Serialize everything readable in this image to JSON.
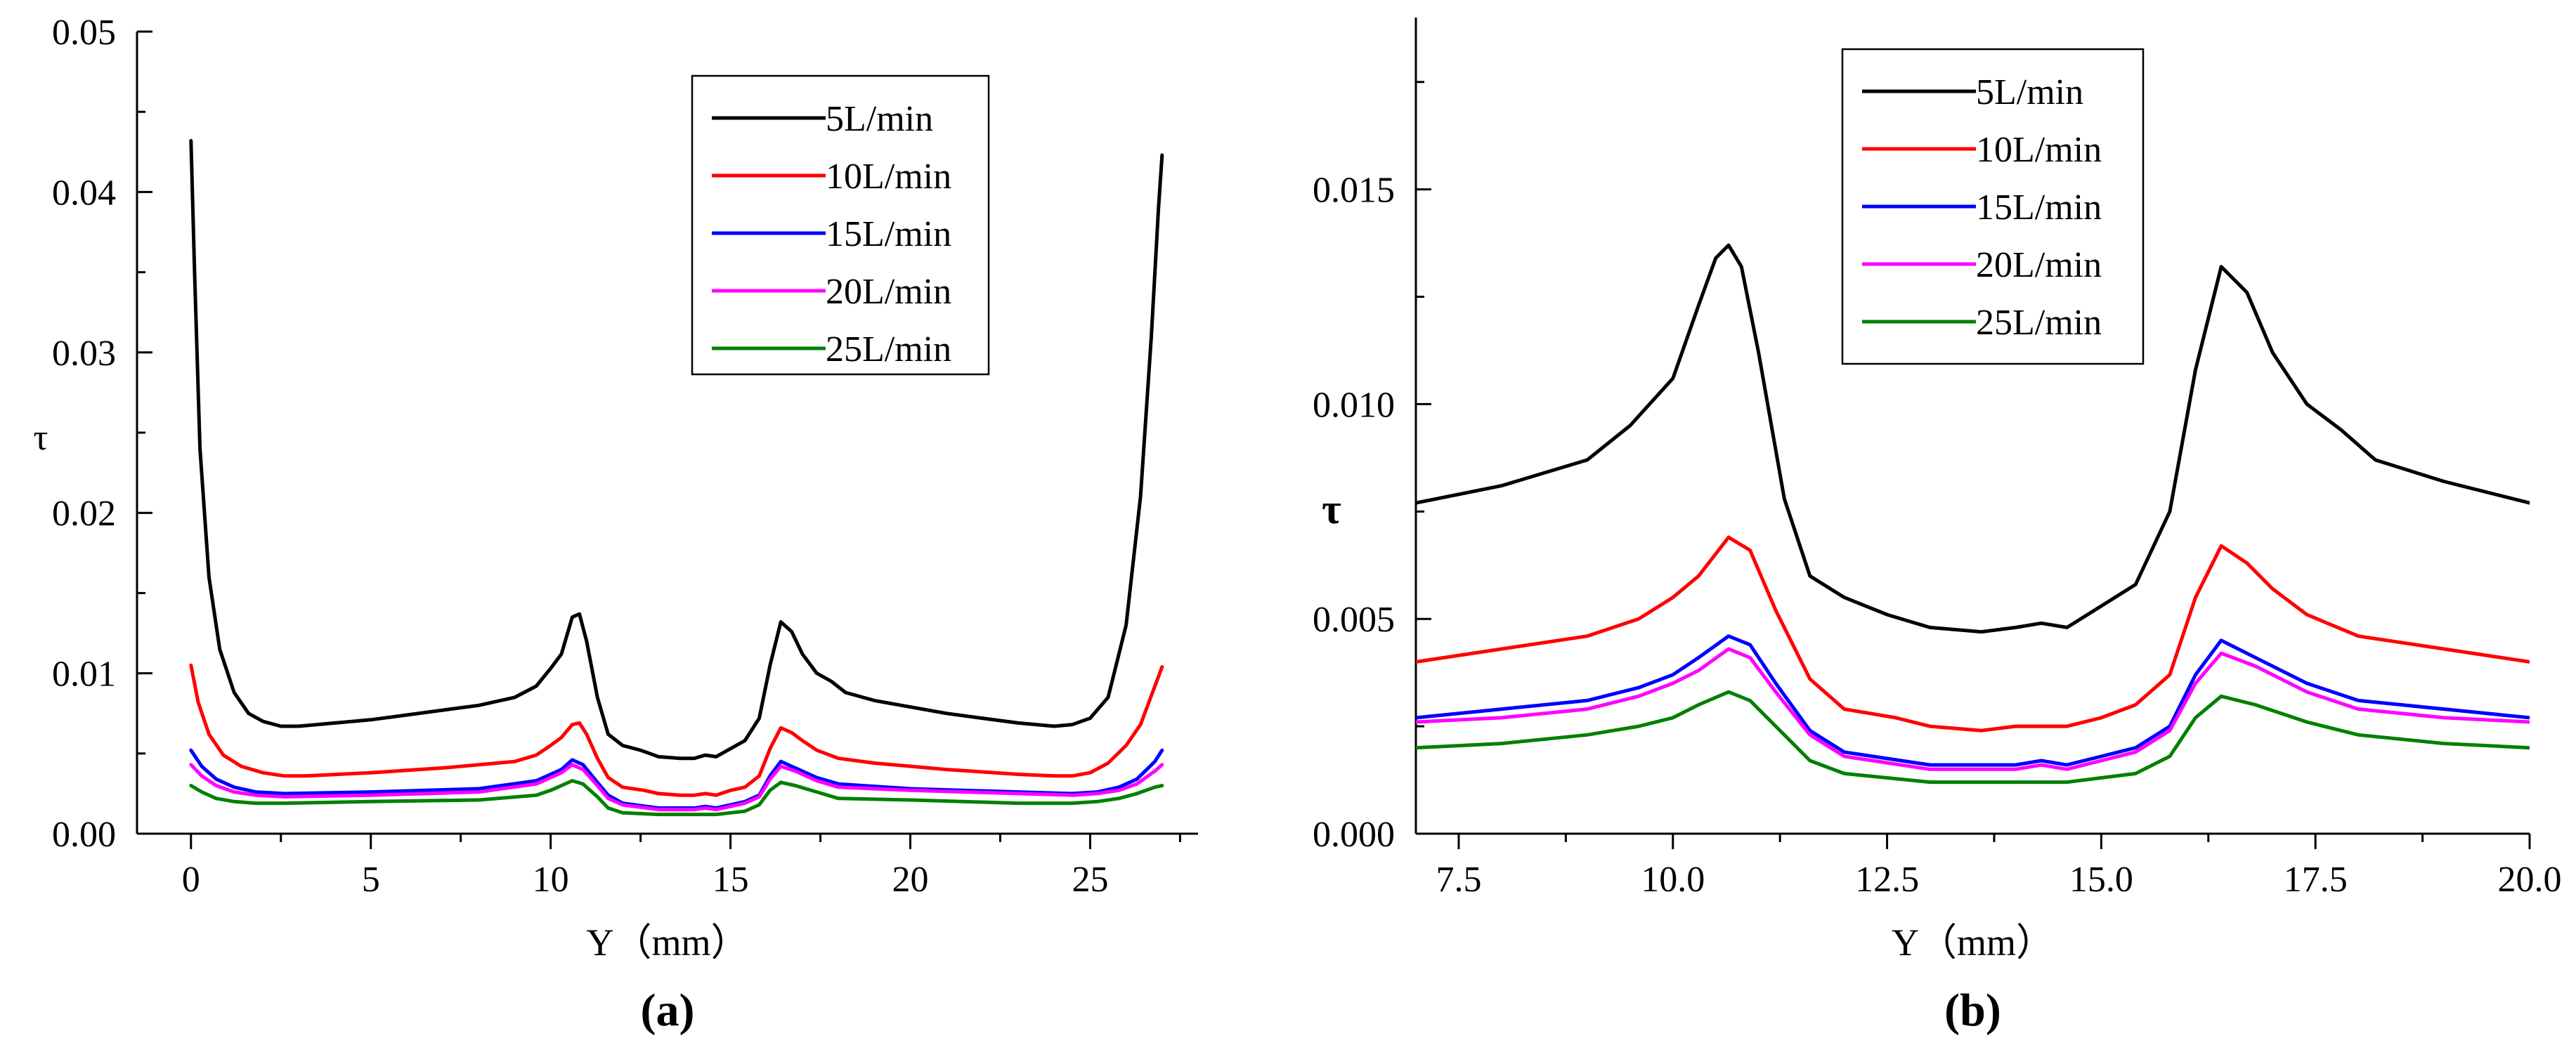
{
  "chart_data": [
    {
      "type": "line",
      "panel_label": "(a)",
      "panel_letter": "a",
      "xlabel": "Y（mm）",
      "ylabel": "τ",
      "xlim": [
        -1.5,
        28
      ],
      "ylim": [
        0,
        0.05
      ],
      "xticks": [
        0,
        5,
        10,
        15,
        20,
        25
      ],
      "xtick_labels": [
        "0",
        "5",
        "10",
        "15",
        "20",
        "25"
      ],
      "yticks": [
        0,
        0.01,
        0.02,
        0.03,
        0.04,
        0.05
      ],
      "ytick_labels": [
        "0.00",
        "0.01",
        "0.02",
        "0.03",
        "0.04",
        "0.05"
      ],
      "legend_position": "top-right",
      "series": [
        {
          "name": "5L/min",
          "color": "#000000",
          "x": [
            0,
            0.1,
            0.25,
            0.5,
            0.8,
            1.2,
            1.6,
            2.0,
            2.5,
            3.0,
            4,
            5,
            6,
            7,
            8,
            9,
            9.6,
            10.0,
            10.3,
            10.6,
            10.8,
            11.0,
            11.3,
            11.6,
            12.0,
            12.5,
            13.0,
            13.6,
            14.0,
            14.3,
            14.6,
            15.0,
            15.4,
            15.8,
            16.1,
            16.4,
            16.7,
            17.0,
            17.4,
            17.8,
            18.2,
            19,
            20,
            21,
            22,
            23,
            24,
            24.5,
            25.0,
            25.5,
            26.0,
            26.4,
            26.7,
            26.9,
            27.0
          ],
          "values": [
            0.0432,
            0.035,
            0.024,
            0.016,
            0.0115,
            0.0088,
            0.0075,
            0.007,
            0.0067,
            0.0067,
            0.0069,
            0.0071,
            0.0074,
            0.0077,
            0.008,
            0.0085,
            0.0092,
            0.0103,
            0.0112,
            0.0135,
            0.0137,
            0.012,
            0.0085,
            0.0062,
            0.0055,
            0.0052,
            0.0048,
            0.0047,
            0.0047,
            0.0049,
            0.0048,
            0.0053,
            0.0058,
            0.0072,
            0.0105,
            0.0132,
            0.0126,
            0.0112,
            0.01,
            0.0095,
            0.0088,
            0.0083,
            0.0079,
            0.0075,
            0.0072,
            0.0069,
            0.0067,
            0.0068,
            0.0072,
            0.0085,
            0.013,
            0.021,
            0.031,
            0.039,
            0.0423
          ]
        },
        {
          "name": "10L/min",
          "color": "#ff0000",
          "x": [
            0,
            0.2,
            0.5,
            0.9,
            1.4,
            2.0,
            2.6,
            3.2,
            5,
            7,
            9,
            9.6,
            10.0,
            10.3,
            10.6,
            10.8,
            11.0,
            11.3,
            11.6,
            12.0,
            12.6,
            13.0,
            13.6,
            14.0,
            14.3,
            14.6,
            15.0,
            15.4,
            15.8,
            16.1,
            16.4,
            16.7,
            17.0,
            17.4,
            18.0,
            19,
            21,
            23,
            24,
            24.5,
            25.0,
            25.5,
            26.0,
            26.4,
            26.8,
            27.0
          ],
          "values": [
            0.0105,
            0.0082,
            0.0062,
            0.0049,
            0.0042,
            0.0038,
            0.0036,
            0.0036,
            0.0038,
            0.0041,
            0.0045,
            0.0049,
            0.0055,
            0.006,
            0.0068,
            0.0069,
            0.0062,
            0.0047,
            0.0035,
            0.0029,
            0.0027,
            0.0025,
            0.0024,
            0.0024,
            0.0025,
            0.0024,
            0.0027,
            0.0029,
            0.0036,
            0.0053,
            0.0066,
            0.0063,
            0.0058,
            0.0052,
            0.0047,
            0.0044,
            0.004,
            0.0037,
            0.0036,
            0.0036,
            0.0038,
            0.0044,
            0.0055,
            0.0068,
            0.0092,
            0.0104
          ]
        },
        {
          "name": "15L/min",
          "color": "#0000ff",
          "x": [
            0,
            0.3,
            0.7,
            1.2,
            1.8,
            2.6,
            5,
            8,
            9.6,
            10.0,
            10.3,
            10.6,
            10.9,
            11.3,
            11.6,
            12.0,
            13.0,
            13.6,
            14.0,
            14.3,
            14.6,
            15.0,
            15.4,
            15.8,
            16.1,
            16.4,
            16.8,
            17.4,
            18.0,
            20,
            23,
            24.5,
            25.2,
            25.8,
            26.3,
            26.8,
            27.0
          ],
          "values": [
            0.0052,
            0.0042,
            0.0034,
            0.0029,
            0.0026,
            0.0025,
            0.0026,
            0.0028,
            0.0033,
            0.0037,
            0.004,
            0.0046,
            0.0043,
            0.0032,
            0.0024,
            0.0019,
            0.0016,
            0.0016,
            0.0016,
            0.0017,
            0.0016,
            0.0018,
            0.002,
            0.0024,
            0.0036,
            0.0045,
            0.0041,
            0.0035,
            0.0031,
            0.0028,
            0.0026,
            0.0025,
            0.0026,
            0.0029,
            0.0034,
            0.0045,
            0.0052
          ]
        },
        {
          "name": "20L/min",
          "color": "#ff00ff",
          "x": [
            0,
            0.3,
            0.7,
            1.2,
            1.8,
            2.6,
            5,
            8,
            9.6,
            10.0,
            10.3,
            10.6,
            10.9,
            11.3,
            11.6,
            12.0,
            13.0,
            13.6,
            14.0,
            14.3,
            14.6,
            15.0,
            15.4,
            15.8,
            16.1,
            16.4,
            16.8,
            17.4,
            18.0,
            20,
            23,
            24.5,
            25.2,
            25.8,
            26.3,
            26.8,
            27.0
          ],
          "values": [
            0.0043,
            0.0036,
            0.003,
            0.0026,
            0.0024,
            0.0023,
            0.0024,
            0.0026,
            0.0031,
            0.0035,
            0.0038,
            0.0043,
            0.004,
            0.003,
            0.0022,
            0.0018,
            0.0015,
            0.0015,
            0.0015,
            0.0016,
            0.0015,
            0.0017,
            0.0019,
            0.0023,
            0.0034,
            0.0042,
            0.0039,
            0.0033,
            0.0029,
            0.0027,
            0.0025,
            0.0024,
            0.0025,
            0.0027,
            0.0031,
            0.0039,
            0.0043
          ]
        },
        {
          "name": "25L/min",
          "color": "#008000",
          "x": [
            0,
            0.3,
            0.7,
            1.2,
            1.8,
            2.6,
            5,
            8,
            9.6,
            10.0,
            10.3,
            10.6,
            10.9,
            11.3,
            11.6,
            12.0,
            13.0,
            13.6,
            14.0,
            14.3,
            14.6,
            15.0,
            15.4,
            15.8,
            16.1,
            16.4,
            16.8,
            17.4,
            18.0,
            20,
            23,
            24.5,
            25.2,
            25.8,
            26.3,
            26.8,
            27.0
          ],
          "values": [
            0.003,
            0.0026,
            0.0022,
            0.002,
            0.0019,
            0.0019,
            0.002,
            0.0021,
            0.0024,
            0.0027,
            0.003,
            0.0033,
            0.0031,
            0.0023,
            0.0016,
            0.0013,
            0.0012,
            0.0012,
            0.0012,
            0.0012,
            0.0012,
            0.0013,
            0.0014,
            0.0018,
            0.0027,
            0.0032,
            0.003,
            0.0026,
            0.0022,
            0.0021,
            0.0019,
            0.0019,
            0.002,
            0.0022,
            0.0025,
            0.0029,
            0.003
          ]
        }
      ]
    },
    {
      "type": "line",
      "panel_label": "(b)",
      "panel_letter": "b",
      "xlabel": "Y（mm）",
      "ylabel": "τ",
      "xlim": [
        7,
        20
      ],
      "ylim": [
        0,
        0.019
      ],
      "xticks": [
        7.5,
        10.0,
        12.5,
        15.0,
        17.5,
        20.0
      ],
      "xtick_labels": [
        "7.5",
        "10.0",
        "12.5",
        "15.0",
        "17.5",
        "20.0"
      ],
      "yticks": [
        0,
        0.005,
        0.01,
        0.015
      ],
      "ytick_labels": [
        "0.000",
        "0.005",
        "0.010",
        "0.015"
      ],
      "legend_position": "top-left",
      "series": [
        {
          "name": "5L/min",
          "color": "#000000",
          "x": [
            7.0,
            8.0,
            9.0,
            9.5,
            10.0,
            10.3,
            10.5,
            10.65,
            10.8,
            11.0,
            11.3,
            11.6,
            12.0,
            12.5,
            13.0,
            13.6,
            14.0,
            14.3,
            14.6,
            15.0,
            15.4,
            15.8,
            16.1,
            16.4,
            16.7,
            17.0,
            17.4,
            17.8,
            18.2,
            19.0,
            20.0
          ],
          "values": [
            0.0077,
            0.0081,
            0.0087,
            0.0095,
            0.0106,
            0.0123,
            0.0134,
            0.0137,
            0.0132,
            0.0112,
            0.0078,
            0.006,
            0.0055,
            0.0051,
            0.0048,
            0.0047,
            0.0048,
            0.0049,
            0.0048,
            0.0053,
            0.0058,
            0.0075,
            0.0108,
            0.0132,
            0.0126,
            0.0112,
            0.01,
            0.0094,
            0.0087,
            0.0082,
            0.0077
          ]
        },
        {
          "name": "10L/min",
          "color": "#ff0000",
          "x": [
            7.0,
            8.0,
            9.0,
            9.6,
            10.0,
            10.3,
            10.65,
            10.9,
            11.2,
            11.6,
            12.0,
            12.6,
            13.0,
            13.6,
            14.0,
            14.3,
            14.6,
            15.0,
            15.4,
            15.8,
            16.1,
            16.4,
            16.7,
            17.0,
            17.4,
            18.0,
            19.0,
            20.0
          ],
          "values": [
            0.004,
            0.0043,
            0.0046,
            0.005,
            0.0055,
            0.006,
            0.0069,
            0.0066,
            0.0052,
            0.0036,
            0.0029,
            0.0027,
            0.0025,
            0.0024,
            0.0025,
            0.0025,
            0.0025,
            0.0027,
            0.003,
            0.0037,
            0.0055,
            0.0067,
            0.0063,
            0.0057,
            0.0051,
            0.0046,
            0.0043,
            0.004
          ]
        },
        {
          "name": "15L/min",
          "color": "#0000ff",
          "x": [
            7.0,
            8.0,
            9.0,
            9.6,
            10.0,
            10.3,
            10.65,
            10.9,
            11.2,
            11.6,
            12.0,
            13.0,
            13.6,
            14.0,
            14.3,
            14.6,
            15.0,
            15.4,
            15.8,
            16.1,
            16.4,
            16.8,
            17.4,
            18.0,
            19.0,
            20.0
          ],
          "values": [
            0.0027,
            0.0029,
            0.0031,
            0.0034,
            0.0037,
            0.0041,
            0.0046,
            0.0044,
            0.0035,
            0.0024,
            0.0019,
            0.0016,
            0.0016,
            0.0016,
            0.0017,
            0.0016,
            0.0018,
            0.002,
            0.0025,
            0.0037,
            0.0045,
            0.0041,
            0.0035,
            0.0031,
            0.0029,
            0.0027
          ]
        },
        {
          "name": "20L/min",
          "color": "#ff00ff",
          "x": [
            7.0,
            8.0,
            9.0,
            9.6,
            10.0,
            10.3,
            10.65,
            10.9,
            11.2,
            11.6,
            12.0,
            13.0,
            13.6,
            14.0,
            14.3,
            14.6,
            15.0,
            15.4,
            15.8,
            16.1,
            16.4,
            16.8,
            17.4,
            18.0,
            19.0,
            20.0
          ],
          "values": [
            0.0026,
            0.0027,
            0.0029,
            0.0032,
            0.0035,
            0.0038,
            0.0043,
            0.0041,
            0.0033,
            0.0023,
            0.0018,
            0.0015,
            0.0015,
            0.0015,
            0.0016,
            0.0015,
            0.0017,
            0.0019,
            0.0024,
            0.0035,
            0.0042,
            0.0039,
            0.0033,
            0.0029,
            0.0027,
            0.0026
          ]
        },
        {
          "name": "25L/min",
          "color": "#008000",
          "x": [
            7.0,
            8.0,
            9.0,
            9.6,
            10.0,
            10.3,
            10.65,
            10.9,
            11.2,
            11.6,
            12.0,
            13.0,
            13.6,
            14.0,
            14.3,
            14.6,
            15.0,
            15.4,
            15.8,
            16.1,
            16.4,
            16.8,
            17.4,
            18.0,
            19.0,
            20.0
          ],
          "values": [
            0.002,
            0.0021,
            0.0023,
            0.0025,
            0.0027,
            0.003,
            0.0033,
            0.0031,
            0.0025,
            0.0017,
            0.0014,
            0.0012,
            0.0012,
            0.0012,
            0.0012,
            0.0012,
            0.0013,
            0.0014,
            0.0018,
            0.0027,
            0.0032,
            0.003,
            0.0026,
            0.0023,
            0.0021,
            0.002
          ]
        }
      ]
    }
  ]
}
